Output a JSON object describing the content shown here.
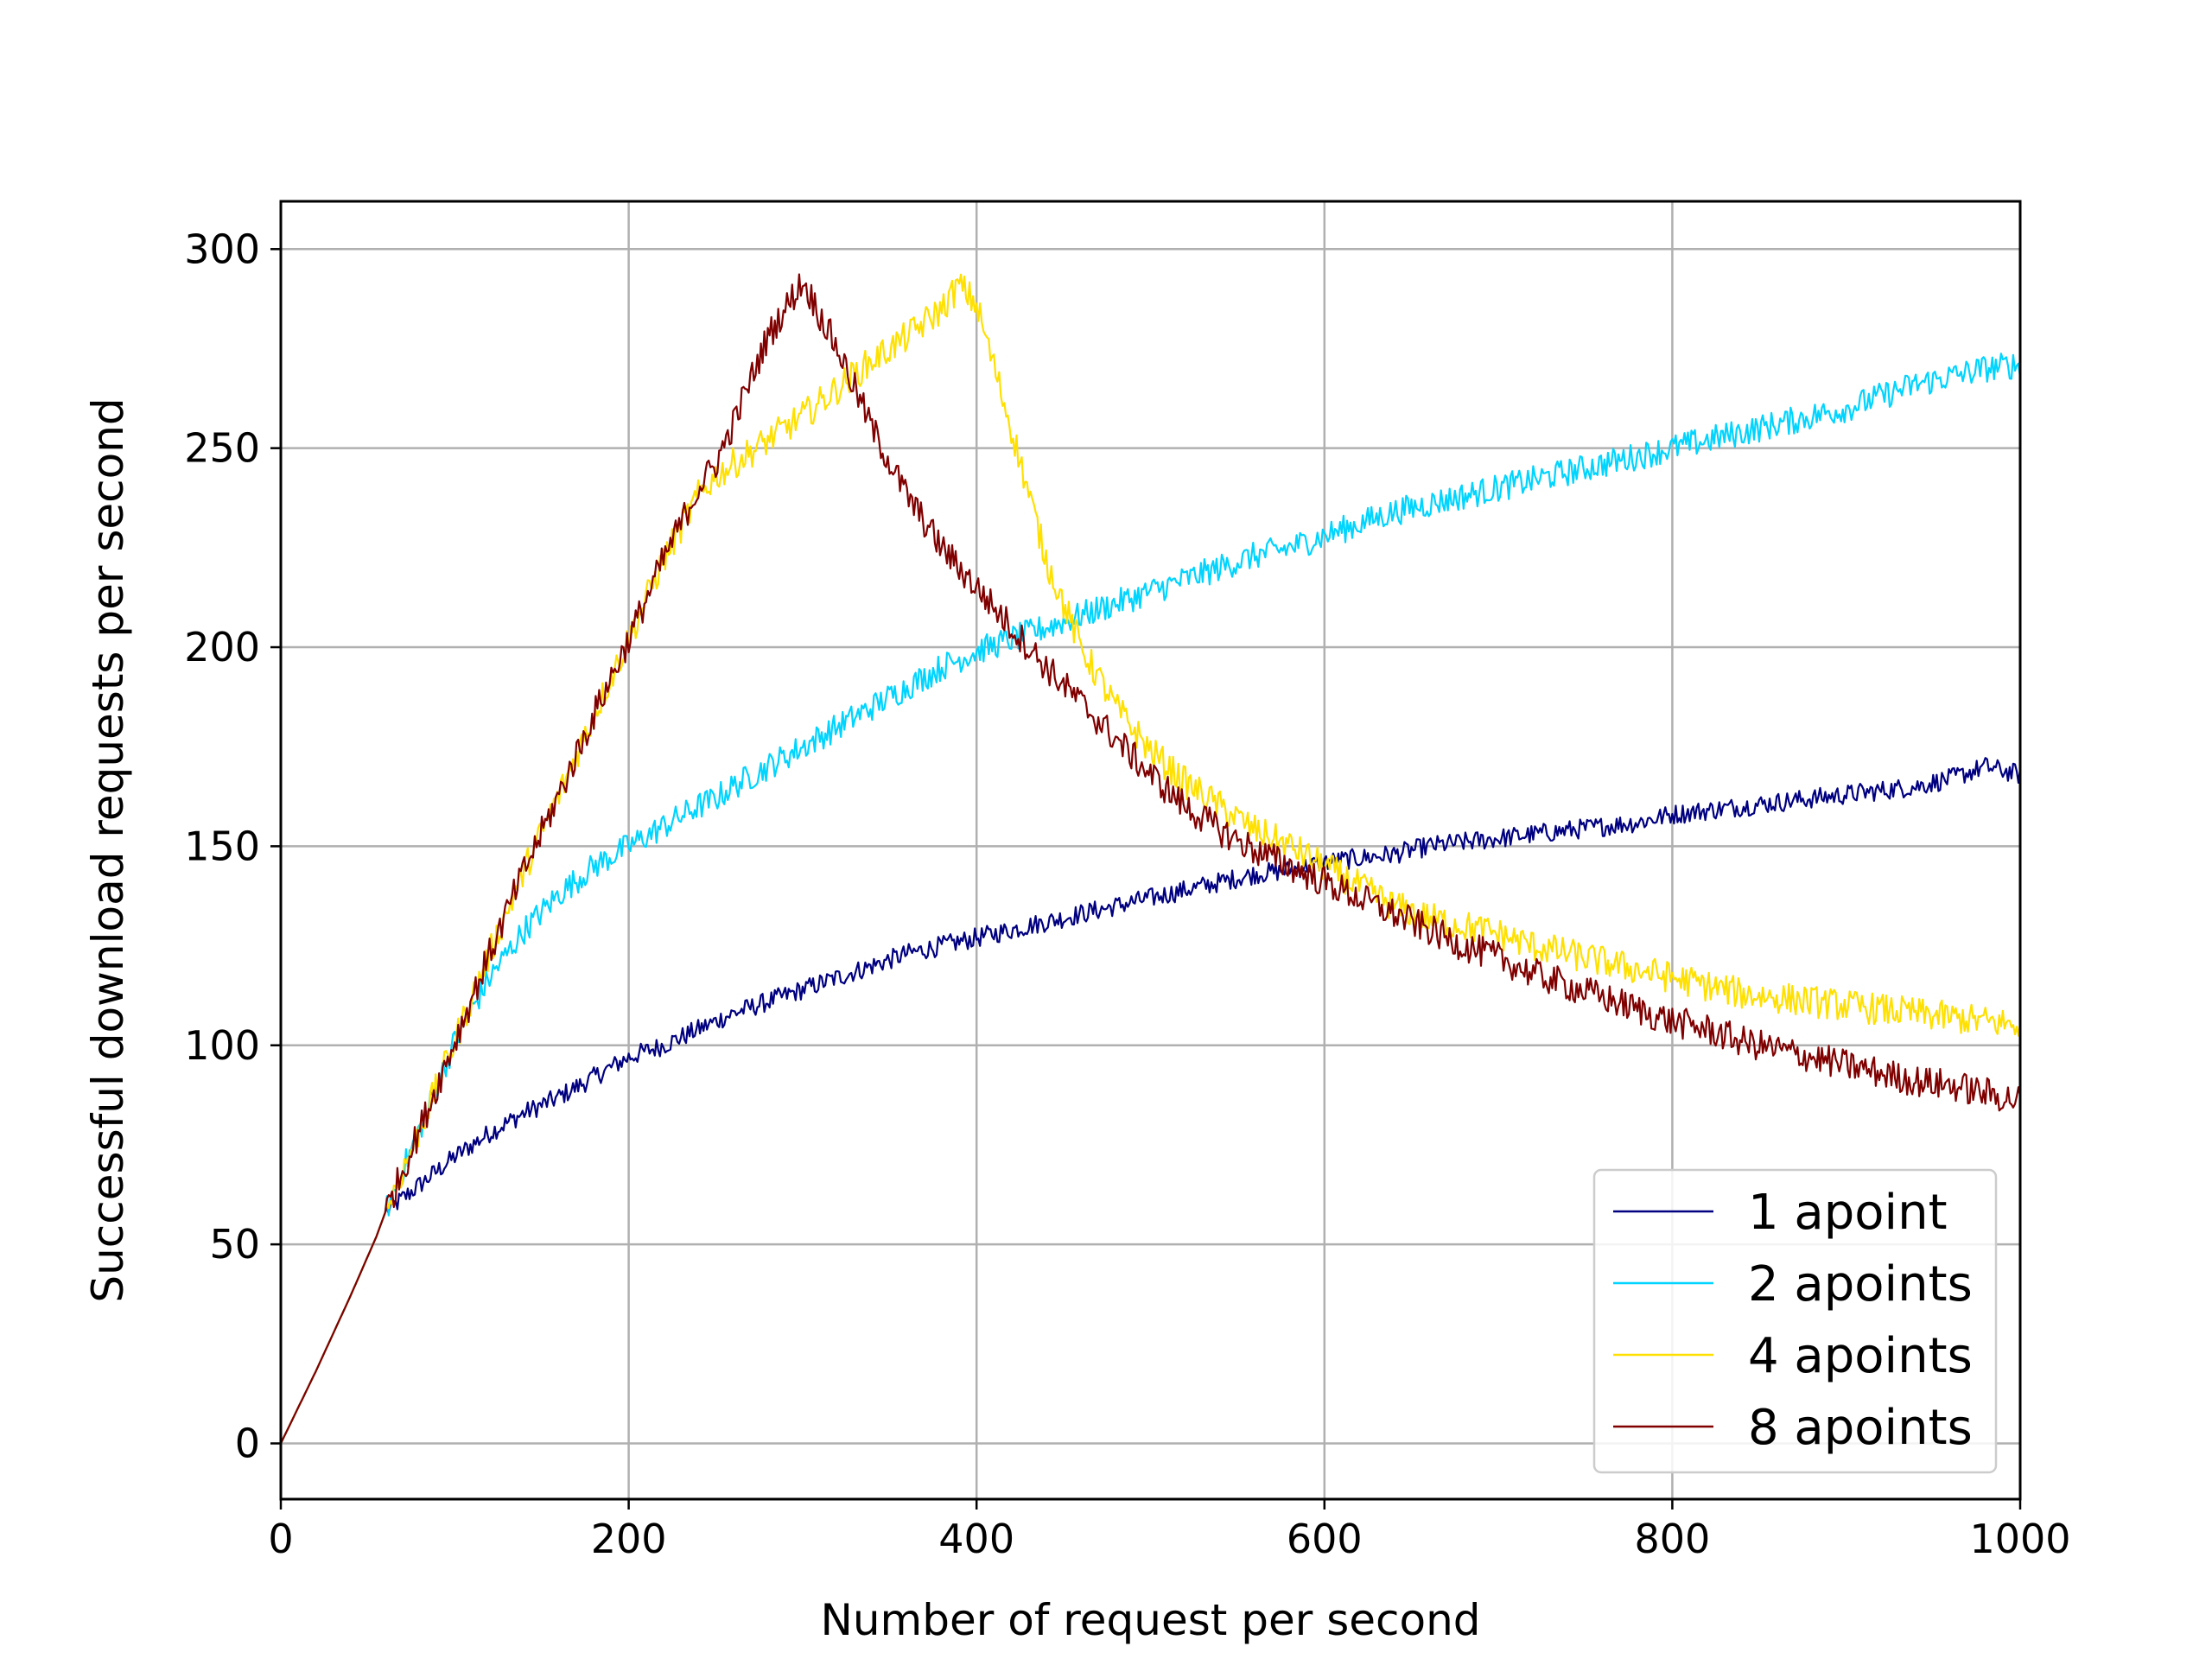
{
  "chart_data": {
    "type": "line",
    "title": "",
    "xlabel": "Number of request per second",
    "ylabel": "Successful download requests per second",
    "xlim": [
      0,
      1000
    ],
    "ylim": [
      -14,
      312
    ],
    "xticks": [
      "0",
      "200",
      "400",
      "600",
      "800",
      "1000"
    ],
    "yticks": [
      "0",
      "50",
      "100",
      "150",
      "200",
      "250",
      "300"
    ],
    "grid": true,
    "legend_position": "lower-right",
    "x": [
      0,
      20,
      40,
      55,
      60,
      80,
      100,
      120,
      140,
      160,
      180,
      200,
      220,
      240,
      250,
      260,
      280,
      300,
      320,
      340,
      360,
      380,
      390,
      400,
      420,
      440,
      460,
      480,
      500,
      520,
      540,
      560,
      580,
      600,
      620,
      640,
      660,
      680,
      700,
      720,
      740,
      760,
      780,
      800,
      820,
      840,
      860,
      880,
      900,
      920,
      940,
      960,
      980,
      1000
    ],
    "series": [
      {
        "name": "1 apoint",
        "color": "#000080",
        "noise": 2.5,
        "values": [
          0,
          18,
          37,
          52,
          58,
          65,
          72,
          78,
          83,
          87,
          92,
          97,
          100,
          104,
          106,
          108,
          111,
          114,
          117,
          120,
          123,
          125,
          126,
          127,
          129,
          131,
          133,
          135,
          137,
          139,
          141,
          143,
          144,
          146,
          147,
          148,
          150,
          151,
          152,
          153,
          154,
          155,
          156,
          158,
          159,
          160,
          161,
          162,
          163,
          164,
          165,
          167,
          170,
          168
        ]
      },
      {
        "name": "2 apoints",
        "color": "#00d4ff",
        "noise": 3.5,
        "values": [
          0,
          18,
          37,
          52,
          58,
          79,
          101,
          117,
          129,
          138,
          145,
          150,
          155,
          160,
          162,
          165,
          170,
          175,
          180,
          185,
          190,
          195,
          197,
          199,
          202,
          205,
          208,
          211,
          214,
          217,
          220,
          223,
          225,
          228,
          231,
          234,
          236,
          238,
          240,
          242,
          244,
          246,
          248,
          250,
          252,
          254,
          256,
          258,
          260,
          263,
          266,
          268,
          270,
          271
        ]
      },
      {
        "name": "4 apoints",
        "color": "#ffe000",
        "noise": 4,
        "values": [
          0,
          18,
          37,
          52,
          58,
          79,
          101,
          123,
          144,
          163,
          183,
          202,
          222,
          238,
          243,
          246,
          252,
          258,
          265,
          272,
          278,
          285,
          291,
          286,
          255,
          222,
          200,
          185,
          174,
          166,
          160,
          154,
          150,
          145,
          140,
          135,
          132,
          130,
          128,
          125,
          123,
          121,
          119,
          117,
          115,
          113,
          112,
          111,
          110,
          109,
          108,
          107,
          106,
          105
        ]
      },
      {
        "name": "8 apoints",
        "color": "#800000",
        "noise": 4,
        "values": [
          0,
          18,
          37,
          52,
          58,
          79,
          101,
          123,
          144,
          163,
          183,
          202,
          222,
          240,
          246,
          256,
          278,
          292,
          275,
          255,
          238,
          225,
          220,
          215,
          205,
          195,
          186,
          177,
          168,
          160,
          154,
          149,
          145,
          141,
          137,
          133,
          129,
          125,
          122,
          118,
          115,
          112,
          109,
          106,
          104,
          101,
          99,
          97,
          95,
          93,
          91,
          90,
          88,
          86
        ]
      }
    ]
  }
}
